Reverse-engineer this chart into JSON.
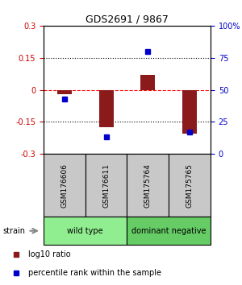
{
  "title": "GDS2691 / 9867",
  "samples": [
    "GSM176606",
    "GSM176611",
    "GSM175764",
    "GSM175765"
  ],
  "log10_ratio": [
    -0.02,
    -0.175,
    0.07,
    -0.205
  ],
  "percentile_rank": [
    43,
    13,
    80,
    17
  ],
  "groups": [
    {
      "label": "wild type",
      "samples": [
        0,
        1
      ],
      "color": "#90ee90"
    },
    {
      "label": "dominant negative",
      "samples": [
        2,
        3
      ],
      "color": "#66cc66"
    }
  ],
  "ylim_left": [
    -0.3,
    0.3
  ],
  "ylim_right": [
    0,
    100
  ],
  "yticks_left": [
    -0.3,
    -0.15,
    0,
    0.15,
    0.3
  ],
  "yticks_right": [
    0,
    25,
    50,
    75,
    100
  ],
  "ytick_labels_right": [
    "0",
    "25",
    "50",
    "75",
    "100%"
  ],
  "hlines": [
    -0.15,
    0,
    0.15
  ],
  "hline_styles": [
    "dotted",
    "dashed",
    "dotted"
  ],
  "hline_colors": [
    "black",
    "red",
    "black"
  ],
  "bar_color": "#8b1a1a",
  "dot_color": "#0000cc",
  "bar_width": 0.35,
  "legend_red": "log10 ratio",
  "legend_blue": "percentile rank within the sample",
  "strain_label": "strain",
  "label_color_left": "#cc0000",
  "label_color_right": "#0000cc",
  "background_sample": "#c8c8c8"
}
